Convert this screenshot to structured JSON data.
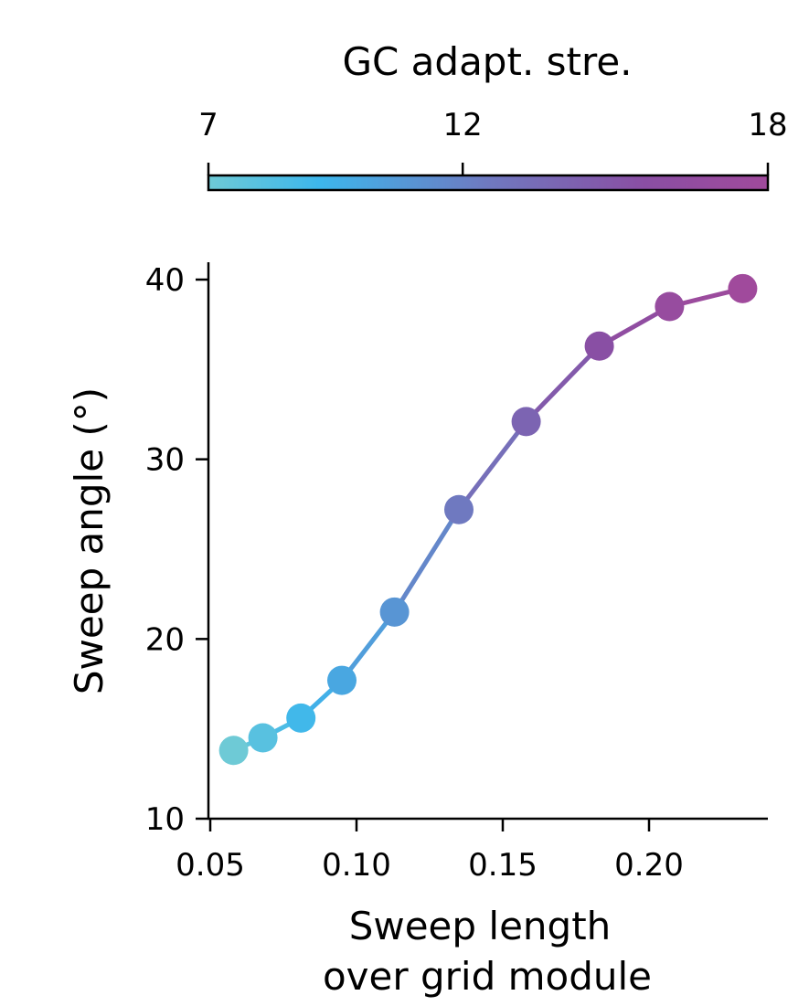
{
  "chart_data": {
    "type": "line",
    "title": "",
    "xlabel_lines": [
      "Sweep length",
      "over grid module"
    ],
    "ylabel": "Sweep angle (°)",
    "xlim": [
      0.05,
      0.24
    ],
    "ylim": [
      10,
      41
    ],
    "xticks": [
      0.05,
      0.1,
      0.15,
      0.2
    ],
    "xtick_labels": [
      "0.05",
      "0.10",
      "0.15",
      "0.20"
    ],
    "yticks": [
      10,
      20,
      30,
      40
    ],
    "ytick_labels": [
      "10",
      "20",
      "30",
      "40"
    ],
    "grid": false,
    "series": [
      {
        "name": "Sweep angle",
        "x": [
          0.058,
          0.068,
          0.081,
          0.095,
          0.113,
          0.135,
          0.158,
          0.183,
          0.207,
          0.232
        ],
        "y": [
          13.8,
          14.5,
          15.6,
          17.7,
          21.5,
          27.2,
          32.1,
          36.3,
          38.5,
          39.5
        ],
        "color_value": [
          7,
          8,
          9,
          10,
          11,
          12.5,
          14,
          15.5,
          17,
          18
        ]
      }
    ],
    "colorbar": {
      "label": "GC adapt. stre.",
      "range": [
        7,
        18
      ],
      "ticks": [
        7,
        12,
        18
      ],
      "tick_labels": [
        "7",
        "12",
        "18"
      ],
      "location": "top",
      "stops": [
        "#6ecad6",
        "#3db6ec",
        "#6f79c0",
        "#8a4ea3",
        "#a04a9c"
      ]
    }
  }
}
